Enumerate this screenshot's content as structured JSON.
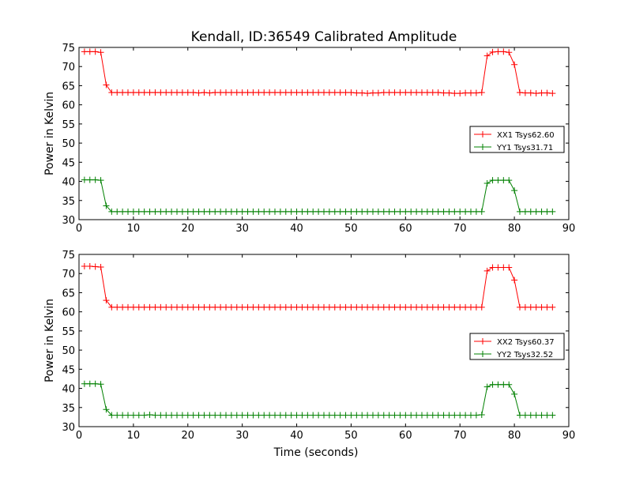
{
  "figure": {
    "title": "Kendall, ID:36549 Calibrated Amplitude"
  },
  "chart_data": [
    {
      "type": "line",
      "title": "Kendall, ID:36549 Calibrated Amplitude",
      "xlabel": "",
      "ylabel": "Power in Kelvin",
      "xlim": [
        0,
        90
      ],
      "ylim": [
        30,
        75
      ],
      "xticks": [
        0,
        10,
        20,
        30,
        40,
        50,
        60,
        70,
        80,
        90
      ],
      "yticks": [
        30,
        35,
        40,
        45,
        50,
        55,
        60,
        65,
        70,
        75
      ],
      "grid": false,
      "legend_position": "center-right",
      "marker": "+",
      "x": [
        1,
        2,
        3,
        4,
        5,
        6,
        7,
        8,
        9,
        10,
        11,
        12,
        13,
        14,
        15,
        16,
        17,
        18,
        19,
        20,
        21,
        22,
        23,
        24,
        25,
        26,
        27,
        28,
        29,
        30,
        31,
        32,
        33,
        34,
        35,
        36,
        37,
        38,
        39,
        40,
        41,
        42,
        43,
        44,
        45,
        46,
        47,
        48,
        49,
        50,
        51,
        52,
        53,
        54,
        55,
        56,
        57,
        58,
        59,
        60,
        61,
        62,
        63,
        64,
        65,
        66,
        67,
        68,
        69,
        70,
        71,
        72,
        73,
        74,
        75,
        76,
        77,
        78,
        79,
        80,
        81,
        82,
        83,
        84,
        85,
        86,
        87
      ],
      "series": [
        {
          "name": "XX1 Tsys62.60",
          "color": "#ff0000",
          "values": [
            73.9,
            73.9,
            73.9,
            73.7,
            65.2,
            63.2,
            63.2,
            63.2,
            63.2,
            63.2,
            63.2,
            63.2,
            63.2,
            63.2,
            63.2,
            63.2,
            63.2,
            63.2,
            63.2,
            63.2,
            63.2,
            63.1,
            63.2,
            63.1,
            63.2,
            63.2,
            63.2,
            63.2,
            63.2,
            63.2,
            63.2,
            63.2,
            63.2,
            63.2,
            63.2,
            63.2,
            63.2,
            63.2,
            63.2,
            63.2,
            63.2,
            63.2,
            63.2,
            63.2,
            63.2,
            63.2,
            63.2,
            63.2,
            63.2,
            63.2,
            63.1,
            63.1,
            63.0,
            63.1,
            63.1,
            63.2,
            63.2,
            63.2,
            63.2,
            63.2,
            63.2,
            63.2,
            63.2,
            63.2,
            63.2,
            63.2,
            63.1,
            63.1,
            63.0,
            63.0,
            63.1,
            63.1,
            63.1,
            63.2,
            72.8,
            73.8,
            73.9,
            73.9,
            73.7,
            70.5,
            63.2,
            63.1,
            63.1,
            63.0,
            63.1,
            63.1,
            63.0
          ]
        },
        {
          "name": "YY1 Tsys31.71",
          "color": "#008000",
          "values": [
            40.4,
            40.4,
            40.4,
            40.3,
            33.6,
            32.1,
            32.1,
            32.1,
            32.1,
            32.1,
            32.1,
            32.1,
            32.1,
            32.1,
            32.1,
            32.1,
            32.1,
            32.1,
            32.1,
            32.1,
            32.1,
            32.1,
            32.1,
            32.1,
            32.1,
            32.1,
            32.1,
            32.1,
            32.1,
            32.1,
            32.1,
            32.1,
            32.1,
            32.1,
            32.1,
            32.1,
            32.1,
            32.1,
            32.1,
            32.1,
            32.1,
            32.1,
            32.1,
            32.1,
            32.1,
            32.1,
            32.1,
            32.1,
            32.1,
            32.1,
            32.1,
            32.1,
            32.1,
            32.1,
            32.1,
            32.1,
            32.1,
            32.1,
            32.1,
            32.1,
            32.1,
            32.1,
            32.1,
            32.1,
            32.1,
            32.1,
            32.1,
            32.1,
            32.1,
            32.1,
            32.1,
            32.1,
            32.1,
            32.1,
            39.5,
            40.3,
            40.3,
            40.3,
            40.3,
            37.6,
            32.1,
            32.1,
            32.1,
            32.1,
            32.1,
            32.1,
            32.1
          ]
        }
      ]
    },
    {
      "type": "line",
      "title": "",
      "xlabel": "Time (seconds)",
      "ylabel": "Power in Kelvin",
      "xlim": [
        0,
        90
      ],
      "ylim": [
        30,
        75
      ],
      "xticks": [
        0,
        10,
        20,
        30,
        40,
        50,
        60,
        70,
        80,
        90
      ],
      "yticks": [
        30,
        35,
        40,
        45,
        50,
        55,
        60,
        65,
        70,
        75
      ],
      "grid": false,
      "legend_position": "center-right",
      "marker": "+",
      "x": [
        1,
        2,
        3,
        4,
        5,
        6,
        7,
        8,
        9,
        10,
        11,
        12,
        13,
        14,
        15,
        16,
        17,
        18,
        19,
        20,
        21,
        22,
        23,
        24,
        25,
        26,
        27,
        28,
        29,
        30,
        31,
        32,
        33,
        34,
        35,
        36,
        37,
        38,
        39,
        40,
        41,
        42,
        43,
        44,
        45,
        46,
        47,
        48,
        49,
        50,
        51,
        52,
        53,
        54,
        55,
        56,
        57,
        58,
        59,
        60,
        61,
        62,
        63,
        64,
        65,
        66,
        67,
        68,
        69,
        70,
        71,
        72,
        73,
        74,
        75,
        76,
        77,
        78,
        79,
        80,
        81,
        82,
        83,
        84,
        85,
        86,
        87
      ],
      "series": [
        {
          "name": "XX2 Tsys60.37",
          "color": "#ff0000",
          "values": [
            71.9,
            71.9,
            71.8,
            71.7,
            63.0,
            61.2,
            61.2,
            61.2,
            61.2,
            61.2,
            61.2,
            61.2,
            61.2,
            61.2,
            61.2,
            61.2,
            61.2,
            61.2,
            61.2,
            61.2,
            61.2,
            61.2,
            61.2,
            61.2,
            61.2,
            61.2,
            61.2,
            61.2,
            61.2,
            61.2,
            61.2,
            61.2,
            61.2,
            61.2,
            61.2,
            61.2,
            61.2,
            61.2,
            61.2,
            61.2,
            61.2,
            61.2,
            61.2,
            61.2,
            61.2,
            61.2,
            61.2,
            61.2,
            61.2,
            61.2,
            61.2,
            61.2,
            61.2,
            61.2,
            61.2,
            61.2,
            61.2,
            61.2,
            61.2,
            61.2,
            61.2,
            61.2,
            61.2,
            61.2,
            61.2,
            61.2,
            61.2,
            61.2,
            61.2,
            61.2,
            61.2,
            61.2,
            61.2,
            61.2,
            70.7,
            71.6,
            71.6,
            71.6,
            71.6,
            68.3,
            61.2,
            61.2,
            61.2,
            61.2,
            61.2,
            61.2,
            61.2
          ]
        },
        {
          "name": "YY2 Tsys32.52",
          "color": "#008000",
          "values": [
            41.2,
            41.2,
            41.2,
            41.1,
            34.5,
            33.0,
            33.0,
            33.0,
            33.0,
            33.0,
            33.0,
            33.0,
            33.1,
            33.0,
            33.0,
            33.0,
            33.0,
            33.0,
            33.0,
            33.0,
            33.0,
            33.0,
            33.0,
            33.0,
            33.0,
            33.0,
            33.0,
            33.0,
            33.0,
            33.0,
            33.0,
            33.0,
            33.0,
            33.0,
            33.0,
            33.0,
            33.0,
            33.0,
            33.0,
            33.0,
            33.0,
            33.0,
            33.0,
            33.0,
            33.0,
            33.0,
            33.0,
            33.0,
            33.0,
            33.0,
            33.0,
            33.0,
            33.0,
            33.0,
            33.0,
            33.0,
            33.0,
            33.0,
            33.0,
            33.0,
            33.0,
            33.0,
            33.0,
            33.0,
            33.0,
            33.0,
            33.0,
            33.0,
            33.0,
            33.0,
            33.0,
            33.0,
            33.0,
            33.1,
            40.4,
            41.0,
            41.0,
            41.0,
            41.0,
            38.5,
            33.0,
            33.0,
            33.0,
            33.0,
            33.0,
            33.0,
            33.0
          ]
        }
      ]
    }
  ]
}
